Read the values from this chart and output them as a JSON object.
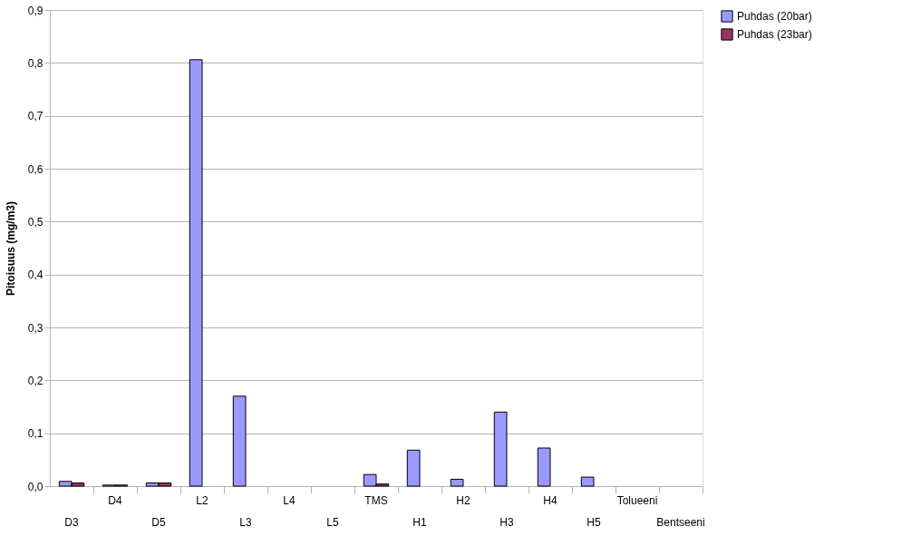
{
  "chart_data": {
    "type": "bar",
    "ylabel": "Pitoisuus (mg/m3)",
    "categories": [
      "D3",
      "D4",
      "D5",
      "L2",
      "L3",
      "L4",
      "L5",
      "TMS",
      "H1",
      "H2",
      "H3",
      "H4",
      "H5",
      "Tolueeni",
      "Bentseeni"
    ],
    "series": [
      {
        "name": "Puhdas (20bar)",
        "color": "#9999ff",
        "values": [
          0.009,
          0.002,
          0.006,
          0.806,
          0.17,
          null,
          null,
          0.022,
          0.068,
          0.013,
          0.14,
          0.072,
          0.017,
          null,
          null
        ]
      },
      {
        "name": "Puhdas (23bar)",
        "color": "#993366",
        "values": [
          0.006,
          0.002,
          0.006,
          null,
          null,
          null,
          null,
          0.004,
          null,
          null,
          null,
          null,
          null,
          null,
          null
        ]
      }
    ],
    "ylim": [
      0,
      0.9
    ],
    "yticks": [
      {
        "value": 0,
        "label": "0,0"
      },
      {
        "value": 0.1,
        "label": "0,1"
      },
      {
        "value": 0.2,
        "label": "0,2"
      },
      {
        "value": 0.3,
        "label": "0,3"
      },
      {
        "value": 0.4,
        "label": "0,4"
      },
      {
        "value": 0.5,
        "label": "0,5"
      },
      {
        "value": 0.6,
        "label": "0,6"
      },
      {
        "value": 0.7,
        "label": "0,7"
      },
      {
        "value": 0.8,
        "label": "0,8"
      },
      {
        "value": 0.9,
        "label": "0,9"
      }
    ],
    "grid": "y",
    "legend": "right"
  }
}
